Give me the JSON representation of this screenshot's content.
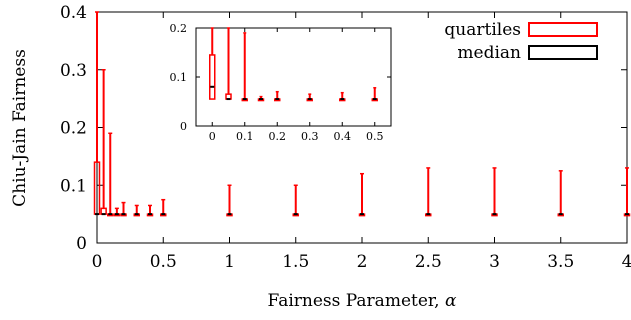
{
  "chart_data": [
    {
      "type": "box",
      "xlabel": "Fairness Parameter, α",
      "ylabel": "Chiu-Jain Fairness",
      "xlim": [
        0,
        4
      ],
      "ylim": [
        0,
        0.4
      ],
      "xticks": [
        "0",
        "0.5",
        "1",
        "1.5",
        "2",
        "2.5",
        "3",
        "3.5",
        "4"
      ],
      "yticks": [
        "0",
        "0.1",
        "0.2",
        "0.3",
        "0.4"
      ],
      "legend": {
        "position": "top-right",
        "entries": [
          {
            "label": "quartiles",
            "color": "#ff0000"
          },
          {
            "label": "median",
            "color": "#000000"
          }
        ]
      },
      "series": [
        {
          "name": "quartiles",
          "color": "#ff0000",
          "points": [
            {
              "x": 0,
              "q1": 0.05,
              "q3": 0.14,
              "max": 0.4
            },
            {
              "x": 0.05,
              "q1": 0.05,
              "q3": 0.06,
              "max": 0.3
            },
            {
              "x": 0.1,
              "q1": 0.05,
              "q3": 0.05,
              "max": 0.19
            },
            {
              "x": 0.15,
              "q1": 0.05,
              "q3": 0.05,
              "max": 0.06
            },
            {
              "x": 0.2,
              "q1": 0.05,
              "q3": 0.05,
              "max": 0.07
            },
            {
              "x": 0.3,
              "q1": 0.05,
              "q3": 0.05,
              "max": 0.065
            },
            {
              "x": 0.4,
              "q1": 0.05,
              "q3": 0.05,
              "max": 0.065
            },
            {
              "x": 0.5,
              "q1": 0.05,
              "q3": 0.05,
              "max": 0.075
            },
            {
              "x": 1,
              "q1": 0.05,
              "q3": 0.05,
              "max": 0.1
            },
            {
              "x": 1.5,
              "q1": 0.05,
              "q3": 0.05,
              "max": 0.1
            },
            {
              "x": 2,
              "q1": 0.05,
              "q3": 0.05,
              "max": 0.12
            },
            {
              "x": 2.5,
              "q1": 0.05,
              "q3": 0.05,
              "max": 0.13
            },
            {
              "x": 3,
              "q1": 0.05,
              "q3": 0.05,
              "max": 0.13
            },
            {
              "x": 3.5,
              "q1": 0.05,
              "q3": 0.05,
              "max": 0.125
            },
            {
              "x": 4,
              "q1": 0.05,
              "q3": 0.05,
              "max": 0.13
            }
          ]
        },
        {
          "name": "median",
          "color": "#000000",
          "points": [
            {
              "x": 0,
              "y": 0.05
            },
            {
              "x": 0.05,
              "y": 0.05
            },
            {
              "x": 0.1,
              "y": 0.05
            },
            {
              "x": 0.15,
              "y": 0.05
            },
            {
              "x": 0.2,
              "y": 0.05
            },
            {
              "x": 0.3,
              "y": 0.05
            },
            {
              "x": 0.4,
              "y": 0.05
            },
            {
              "x": 0.5,
              "y": 0.05
            },
            {
              "x": 1,
              "y": 0.05
            },
            {
              "x": 1.5,
              "y": 0.05
            },
            {
              "x": 2,
              "y": 0.05
            },
            {
              "x": 2.5,
              "y": 0.05
            },
            {
              "x": 3,
              "y": 0.05
            },
            {
              "x": 3.5,
              "y": 0.05
            },
            {
              "x": 4,
              "y": 0.05
            }
          ]
        }
      ]
    },
    {
      "type": "box",
      "xlabel": "",
      "ylabel": "",
      "xlim": [
        -0.05,
        0.55
      ],
      "ylim": [
        0,
        0.2
      ],
      "xticks": [
        "0",
        "0.1",
        "0.2",
        "0.3",
        "0.4",
        "0.5"
      ],
      "yticks": [
        "0",
        "0.1",
        "0.2"
      ],
      "series": [
        {
          "name": "quartiles",
          "color": "#ff0000",
          "points": [
            {
              "x": 0,
              "q1": 0.055,
              "q3": 0.145,
              "max": 0.2
            },
            {
              "x": 0.05,
              "q1": 0.055,
              "q3": 0.065,
              "max": 0.2
            },
            {
              "x": 0.1,
              "q1": 0.055,
              "q3": 0.055,
              "max": 0.19
            },
            {
              "x": 0.15,
              "q1": 0.055,
              "q3": 0.055,
              "max": 0.06
            },
            {
              "x": 0.2,
              "q1": 0.055,
              "q3": 0.055,
              "max": 0.07
            },
            {
              "x": 0.3,
              "q1": 0.055,
              "q3": 0.055,
              "max": 0.065
            },
            {
              "x": 0.4,
              "q1": 0.055,
              "q3": 0.055,
              "max": 0.068
            },
            {
              "x": 0.5,
              "q1": 0.055,
              "q3": 0.055,
              "max": 0.078
            }
          ]
        },
        {
          "name": "median",
          "color": "#000000",
          "points": [
            {
              "x": 0,
              "y": 0.08
            },
            {
              "x": 0.05,
              "y": 0.055
            },
            {
              "x": 0.1,
              "y": 0.055
            },
            {
              "x": 0.15,
              "y": 0.055
            },
            {
              "x": 0.2,
              "y": 0.055
            },
            {
              "x": 0.3,
              "y": 0.055
            },
            {
              "x": 0.4,
              "y": 0.055
            },
            {
              "x": 0.5,
              "y": 0.055
            }
          ]
        }
      ]
    }
  ]
}
